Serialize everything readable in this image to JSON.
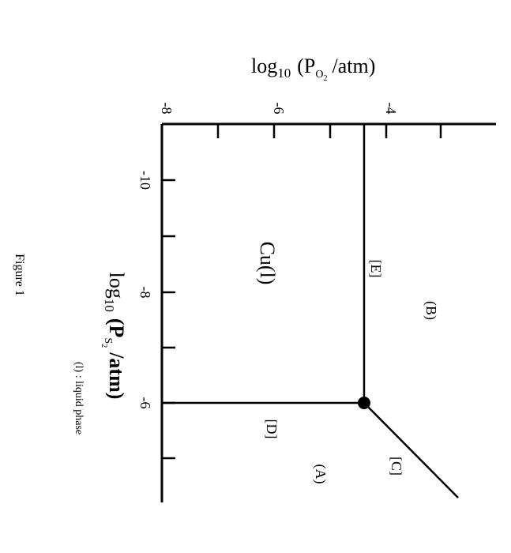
{
  "figure": {
    "caption": "Figure 1",
    "note": "(l) : liquid phase",
    "top_axis_label": "log",
    "top_axis_sub": "10",
    "top_axis_p": "(P",
    "top_axis_psub": "O",
    "top_axis_psub2": "2",
    "top_axis_unit": "/atm)",
    "left_axis_label": "log",
    "left_axis_sub": "10",
    "left_axis_p": "(P",
    "left_axis_psub": "S",
    "left_axis_psub2": "2",
    "left_axis_unit": "/atm)"
  },
  "top_ticks": [
    {
      "label": "-8",
      "value": -8
    },
    {
      "label": "-6",
      "value": -6
    },
    {
      "label": "-4",
      "value": -4
    }
  ],
  "left_ticks": [
    {
      "label": "-10",
      "value": -10
    },
    {
      "label": "-8",
      "value": -8
    },
    {
      "label": "-6",
      "value": -6
    }
  ],
  "regions": [
    {
      "label": "Cu(l)"
    },
    {
      "label": "(B)"
    },
    {
      "label": "(A)"
    }
  ],
  "boundaries": [
    {
      "label": "[E]"
    },
    {
      "label": "[D]"
    },
    {
      "label": "[C]"
    }
  ],
  "triple_point": {
    "log_po2": -4.4,
    "log_ps2": -6
  }
}
